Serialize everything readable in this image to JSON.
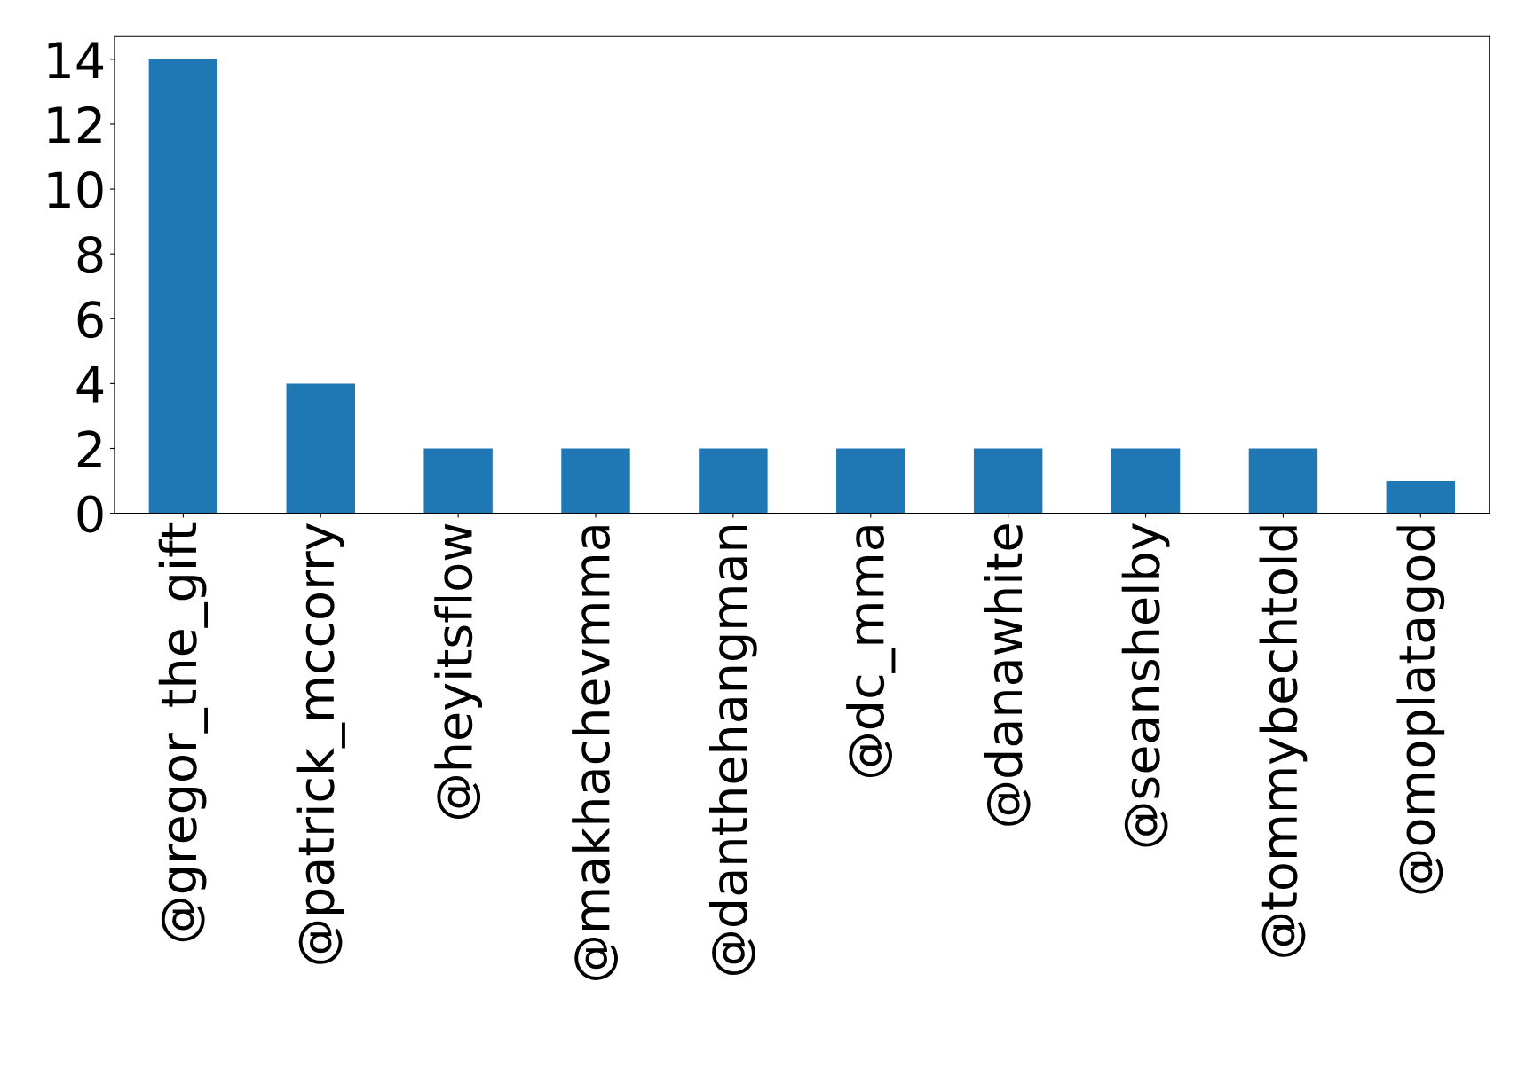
{
  "chart_data": {
    "type": "bar",
    "categories": [
      "@gregor_the_gift",
      "@patrick_mccorry",
      "@heyitsflow",
      "@makhachevmma",
      "@danthehangman",
      "@dc_mma",
      "@danawhite",
      "@seanshelby",
      "@tommybechtold",
      "@omoplatagod"
    ],
    "values": [
      14,
      4,
      2,
      2,
      2,
      2,
      2,
      2,
      2,
      1
    ],
    "color": "#1f77b4",
    "ylim": [
      0,
      14.7
    ],
    "yticks": [
      0,
      2,
      4,
      6,
      8,
      10,
      12,
      14
    ],
    "grid": false
  }
}
